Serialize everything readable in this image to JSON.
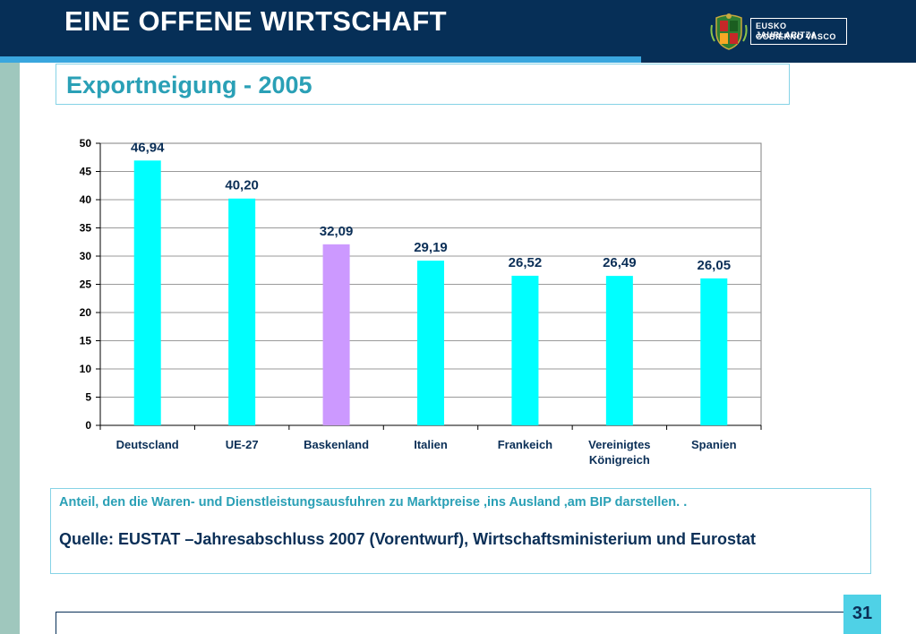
{
  "header": {
    "title": "EINE OFFENE WIRTSCHAFT",
    "logo_line1": "EUSKO JAURLARITZA",
    "logo_line2": "GOBIERNO VASCO"
  },
  "subtitle": "Exportneigung - 2005",
  "chart_data": {
    "type": "bar",
    "categories": [
      "Deutscland",
      "UE-27",
      "Baskenland",
      "Italien",
      "Frankeich",
      "Vereinigtes Königreich",
      "Spanien"
    ],
    "category_lines": [
      [
        "Deutscland"
      ],
      [
        "UE-27"
      ],
      [
        "Baskenland"
      ],
      [
        "Italien"
      ],
      [
        "Frankeich"
      ],
      [
        "Vereinigtes",
        "Königreich"
      ],
      [
        "Spanien"
      ]
    ],
    "values": [
      46.94,
      40.2,
      32.09,
      29.19,
      26.52,
      26.49,
      26.05
    ],
    "value_labels": [
      "46,94",
      "40,20",
      "32,09",
      "29,19",
      "26,52",
      "26,49",
      "26,05"
    ],
    "bar_colors": [
      "#00ffff",
      "#00ffff",
      "#cc99ff",
      "#00ffff",
      "#00ffff",
      "#00ffff",
      "#00ffff"
    ],
    "ylim": [
      0,
      50
    ],
    "yticks": [
      0,
      5,
      10,
      15,
      20,
      25,
      30,
      35,
      40,
      45,
      50
    ],
    "grid": true,
    "legend": "none",
    "label_color": "#0b2f57"
  },
  "note": "Anteil, den die Waren- und Dienstleistungsausfuhren zu Marktpreise ,ins Ausland ,am BIP darstellen. .",
  "source": "Quelle: EUSTAT –Jahresabschluss 2007 (Vorentwurf), Wirtschaftsministerium und Eurostat",
  "page_number": "31"
}
